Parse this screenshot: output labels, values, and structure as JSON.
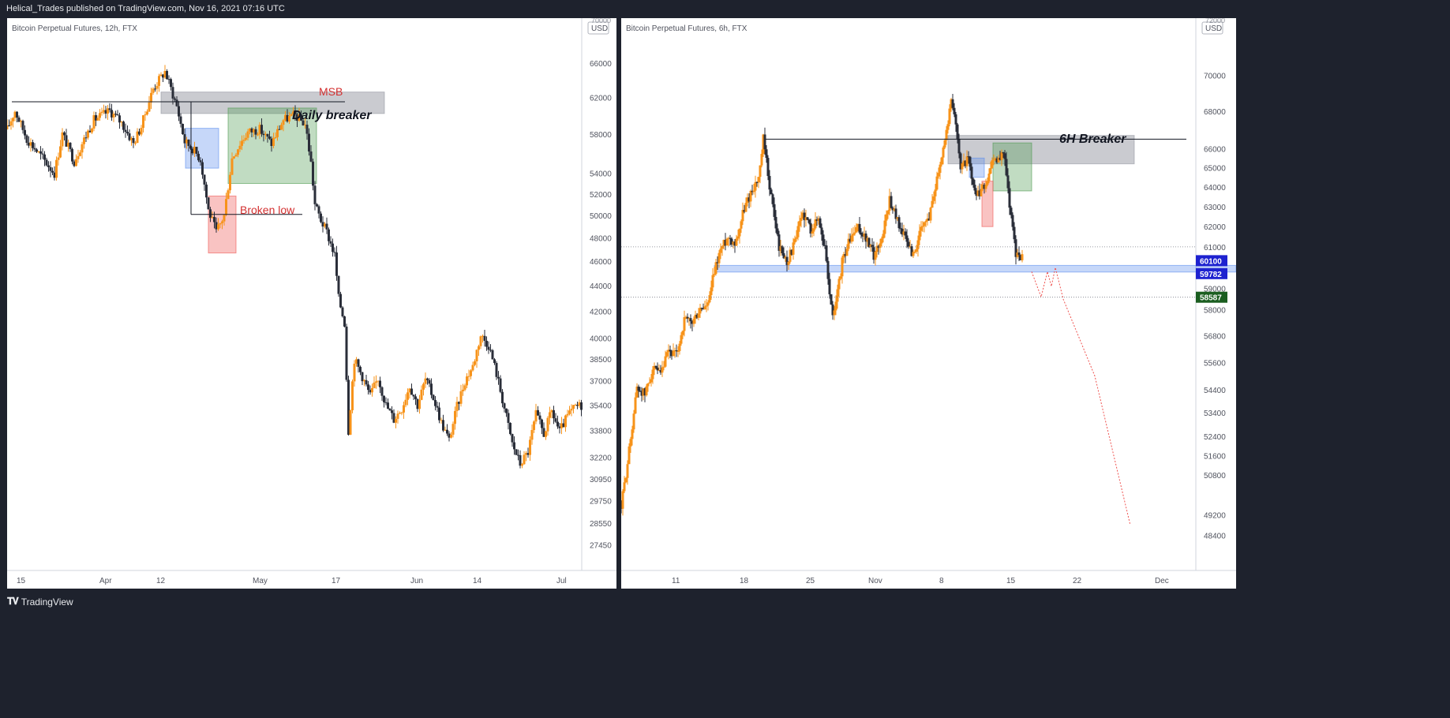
{
  "header": {
    "publish_text": "Helical_Trades published on TradingView.com, Nov 16, 2021 07:16 UTC"
  },
  "footer": {
    "brand": "TradingView",
    "logo_icon": "tradingview-logo-icon"
  },
  "colors": {
    "bull": "#f7931a",
    "bear": "#2a2e39",
    "text_red": "#d32f2f",
    "grid_text": "#50535e"
  },
  "chart_data": [
    {
      "type": "candlestick",
      "title": "Bitcoin Perpetual Futures, 12h, FTX",
      "currency": "USD",
      "y_scale": "log",
      "ylim": [
        26500,
        71000
      ],
      "y_ticks": [
        66000,
        62000,
        58000,
        54000,
        52000,
        50000,
        48000,
        46000,
        44000,
        42000,
        40000,
        38500,
        37000,
        35400,
        33800,
        32200,
        30950,
        29750,
        28550,
        27450
      ],
      "y_top_cut": "70000",
      "x_labels": [
        "15",
        "Apr",
        "12",
        "May",
        "17",
        "Jun",
        "14",
        "Jul"
      ],
      "path": [
        [
          0,
          58500
        ],
        [
          10,
          60500
        ],
        [
          25,
          57500
        ],
        [
          45,
          55500
        ],
        [
          60,
          54000
        ],
        [
          70,
          58000
        ],
        [
          85,
          55200
        ],
        [
          95,
          57000
        ],
        [
          110,
          59500
        ],
        [
          130,
          60500
        ],
        [
          145,
          59200
        ],
        [
          160,
          57000
        ],
        [
          170,
          58800
        ],
        [
          185,
          63000
        ],
        [
          200,
          65000
        ],
        [
          215,
          61000
        ],
        [
          225,
          57200
        ],
        [
          235,
          56500
        ],
        [
          245,
          55400
        ],
        [
          255,
          50500
        ],
        [
          265,
          48500
        ],
        [
          275,
          50000
        ],
        [
          285,
          55500
        ],
        [
          295,
          57000
        ],
        [
          305,
          58200
        ],
        [
          320,
          58500
        ],
        [
          335,
          57000
        ],
        [
          350,
          59500
        ],
        [
          365,
          60000
        ],
        [
          378,
          59000
        ],
        [
          385,
          55000
        ],
        [
          390,
          51000
        ],
        [
          398,
          49500
        ],
        [
          405,
          48500
        ],
        [
          415,
          46500
        ],
        [
          420,
          43000
        ],
        [
          428,
          41000
        ],
        [
          432,
          33500
        ],
        [
          440,
          38500
        ],
        [
          450,
          37300
        ],
        [
          460,
          36000
        ],
        [
          470,
          37200
        ],
        [
          480,
          35400
        ],
        [
          490,
          34500
        ],
        [
          500,
          35200
        ],
        [
          510,
          36700
        ],
        [
          520,
          35400
        ],
        [
          530,
          37100
        ],
        [
          540,
          35900
        ],
        [
          550,
          34300
        ],
        [
          560,
          33200
        ],
        [
          570,
          35300
        ],
        [
          580,
          37000
        ],
        [
          590,
          38000
        ],
        [
          600,
          40200
        ],
        [
          610,
          39500
        ],
        [
          620,
          37500
        ],
        [
          630,
          35200
        ],
        [
          640,
          33000
        ],
        [
          650,
          31800
        ],
        [
          660,
          32500
        ],
        [
          670,
          34800
        ],
        [
          680,
          33600
        ],
        [
          690,
          35000
        ],
        [
          700,
          33700
        ],
        [
          710,
          34700
        ],
        [
          720,
          35300
        ],
        [
          728,
          35400
        ]
      ],
      "annotations": [
        {
          "label": "MSB",
          "kind": "level-line",
          "price": 61500
        },
        {
          "label": "Daily breaker",
          "kind": "zone",
          "from": 60200,
          "to": 62600
        },
        {
          "label": "Broken low",
          "kind": "level-line",
          "price": 50100
        },
        {
          "label": "",
          "kind": "zone-blue",
          "from": 54500,
          "to": 58600
        },
        {
          "label": "",
          "kind": "zone-green",
          "from": 53000,
          "to": 60800
        },
        {
          "label": "",
          "kind": "zone-red",
          "from": 46700,
          "to": 51800
        }
      ]
    },
    {
      "type": "candlestick",
      "title": "Bitcoin Perpetual Futures, 6h, FTX",
      "currency": "USD",
      "y_scale": "log",
      "ylim": [
        47300,
        73000
      ],
      "y_ticks": [
        70000,
        68000,
        66000,
        65000,
        64000,
        63000,
        62000,
        61000,
        59000,
        58000,
        56800,
        55600,
        54400,
        53400,
        52400,
        51600,
        50800,
        49200,
        48400
      ],
      "y_top_cut": "72000",
      "x_labels": [
        "11",
        "18",
        "25",
        "Nov",
        "8",
        "15",
        "22",
        "Dec"
      ],
      "path": [
        [
          0,
          49500
        ],
        [
          10,
          51800
        ],
        [
          20,
          54500
        ],
        [
          30,
          54200
        ],
        [
          40,
          55300
        ],
        [
          50,
          55000
        ],
        [
          60,
          56100
        ],
        [
          70,
          55900
        ],
        [
          80,
          57500
        ],
        [
          90,
          57400
        ],
        [
          100,
          58000
        ],
        [
          110,
          58200
        ],
        [
          118,
          59800
        ],
        [
          125,
          60800
        ],
        [
          135,
          61500
        ],
        [
          145,
          61200
        ],
        [
          155,
          62800
        ],
        [
          165,
          63800
        ],
        [
          175,
          64500
        ],
        [
          180,
          66500
        ],
        [
          185,
          65000
        ],
        [
          190,
          63500
        ],
        [
          200,
          61000
        ],
        [
          210,
          60300
        ],
        [
          220,
          61200
        ],
        [
          230,
          62700
        ],
        [
          240,
          61900
        ],
        [
          250,
          62400
        ],
        [
          260,
          60500
        ],
        [
          265,
          58200
        ],
        [
          270,
          57800
        ],
        [
          280,
          60300
        ],
        [
          290,
          61400
        ],
        [
          300,
          61900
        ],
        [
          310,
          61400
        ],
        [
          320,
          60600
        ],
        [
          330,
          61400
        ],
        [
          340,
          63400
        ],
        [
          350,
          62300
        ],
        [
          360,
          61400
        ],
        [
          370,
          60600
        ],
        [
          380,
          61800
        ],
        [
          390,
          62500
        ],
        [
          400,
          64500
        ],
        [
          410,
          66500
        ],
        [
          418,
          68500
        ],
        [
          425,
          67200
        ],
        [
          430,
          65000
        ],
        [
          440,
          65500
        ],
        [
          445,
          64000
        ],
        [
          450,
          63500
        ],
        [
          460,
          64000
        ],
        [
          470,
          65200
        ],
        [
          480,
          65500
        ],
        [
          485,
          66000
        ],
        [
          490,
          63800
        ],
        [
          495,
          62300
        ],
        [
          500,
          60600
        ],
        [
          508,
          60500
        ]
      ],
      "projection": [
        [
          520,
          59800
        ],
        [
          532,
          58600
        ],
        [
          540,
          59800
        ],
        [
          545,
          59100
        ],
        [
          550,
          60000
        ],
        [
          560,
          58500
        ],
        [
          600,
          55000
        ],
        [
          645,
          48800
        ]
      ],
      "annotations": [
        {
          "label": "6H Breaker",
          "kind": "zone",
          "from": 65200,
          "to": 66700
        },
        {
          "label": "",
          "kind": "level-line",
          "price": 66500
        },
        {
          "label": "",
          "kind": "zone-blue",
          "from": 59782,
          "to": 60100
        },
        {
          "label": "",
          "kind": "zone-green",
          "from": 63800,
          "to": 66300
        },
        {
          "label": "",
          "kind": "zone-red",
          "from": 62000,
          "to": 64300
        },
        {
          "label": "",
          "kind": "zone-blue-small",
          "from": 64500,
          "to": 65500
        }
      ],
      "price_labels": [
        {
          "value": "60100",
          "color": "#1e22d0"
        },
        {
          "value": "59782",
          "color": "#1e22d0"
        },
        {
          "value": "58587",
          "color": "#1b5e20"
        }
      ],
      "dotted_levels": [
        61000,
        58587
      ]
    }
  ]
}
